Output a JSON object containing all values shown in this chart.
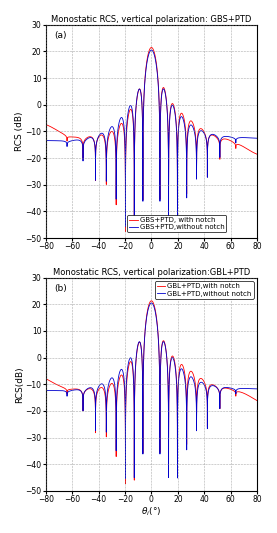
{
  "title_a": "Monostatic RCS, vertical polarization: GBS+PTD",
  "title_b": "Monostatic RCS, vertical polarization:GBL+PTD",
  "label_a": "(a)",
  "label_b": "(b)",
  "legend_a_with": "GBS+PTD, with notch",
  "legend_a_without": "GBS+PTD,without notch",
  "legend_b_with": "GBL+PTD,with notch",
  "legend_b_without": "GBL+PTD,without notch",
  "ylabel_a": "RCS (dB)",
  "ylabel_b": "RCS(dB)",
  "xlim": [
    -80,
    80
  ],
  "ylim": [
    -50,
    30
  ],
  "yticks": [
    -50,
    -40,
    -30,
    -20,
    -10,
    0,
    10,
    20,
    30
  ],
  "xticks": [
    -80,
    -60,
    -40,
    -20,
    0,
    20,
    40,
    60,
    80
  ],
  "color_with": "#FF0000",
  "color_without": "#0000CC",
  "title_fontsize": 6.0,
  "label_fontsize": 6.5,
  "tick_fontsize": 5.5,
  "legend_fontsize": 5.0,
  "line_width": 0.6,
  "background_color": "#ffffff"
}
